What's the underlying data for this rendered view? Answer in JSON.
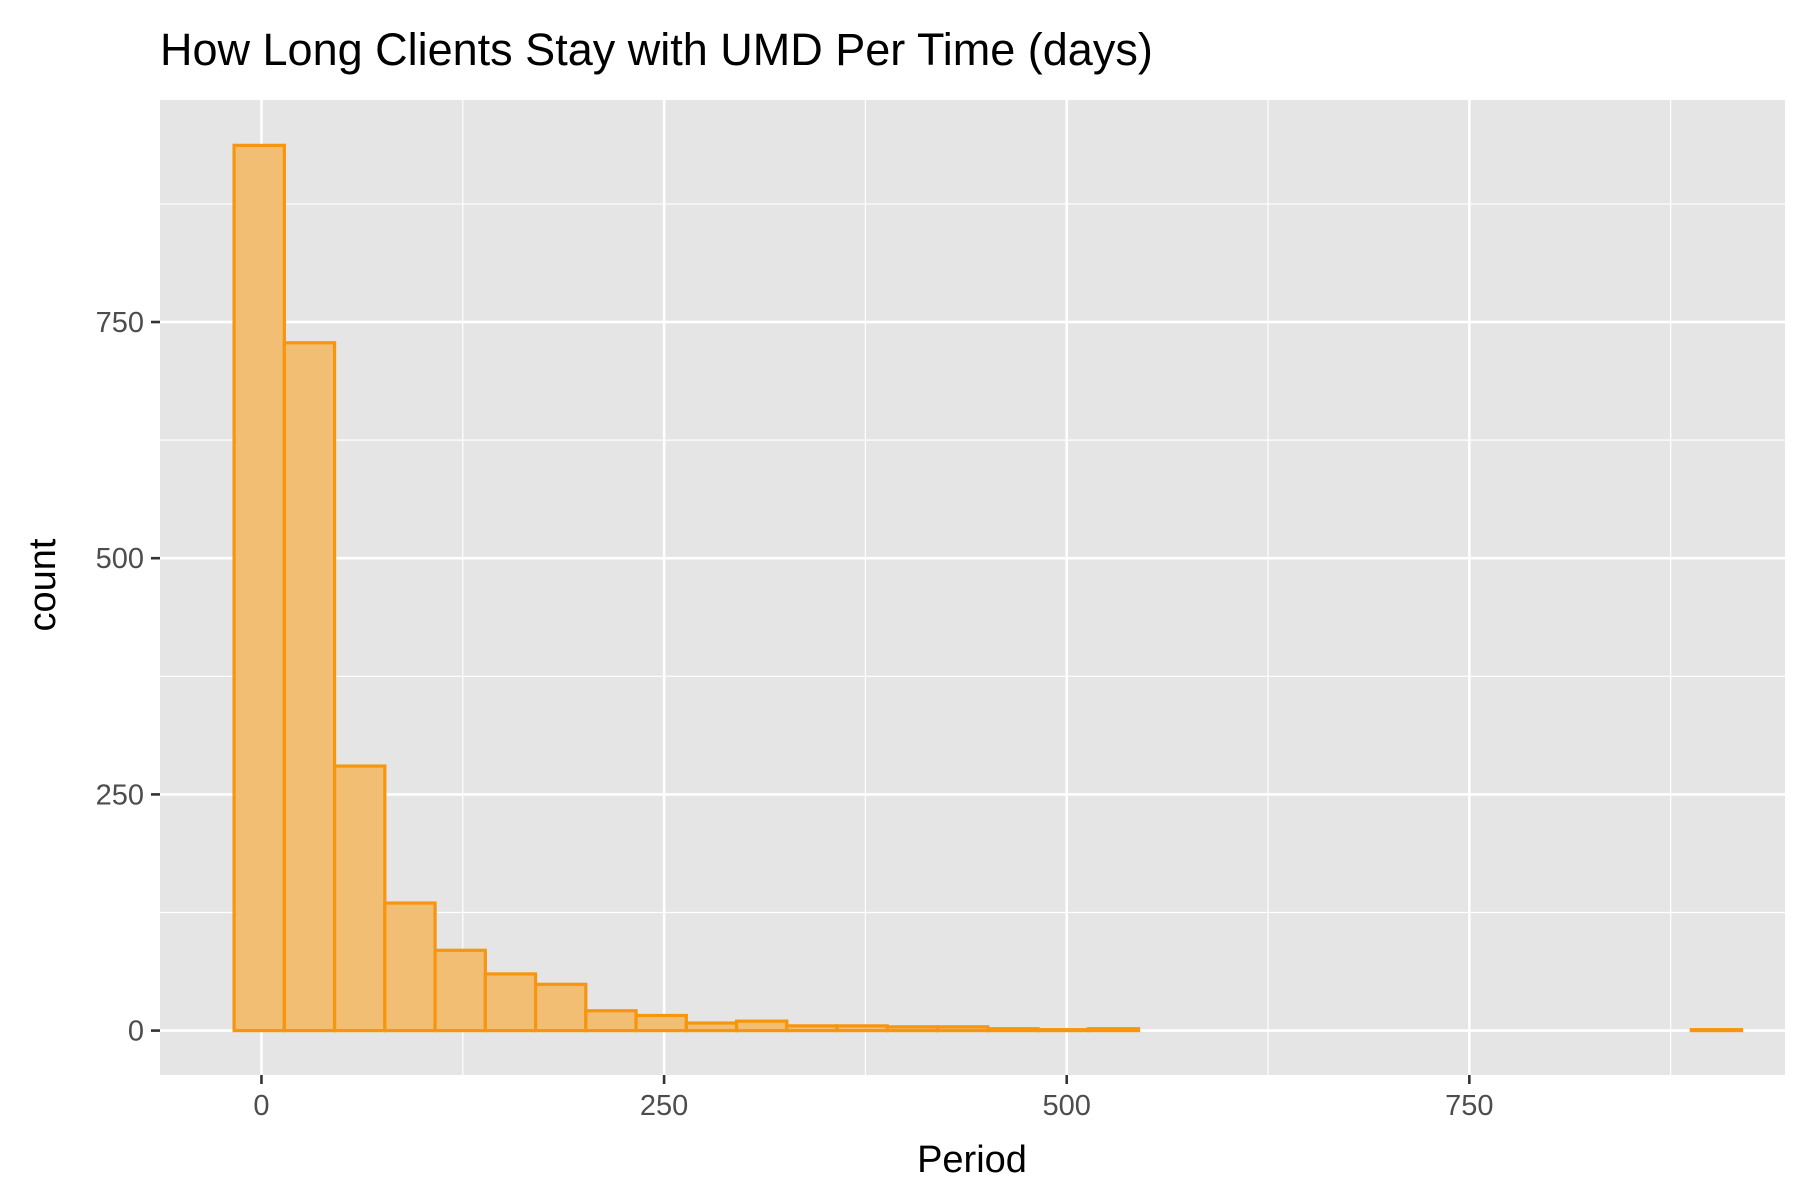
{
  "chart_data": {
    "type": "bar",
    "title": "How Long Clients Stay with UMD Per Time (days)",
    "xlabel": "Period",
    "ylabel": "count",
    "xlim": [
      -63,
      946
    ],
    "ylim": [
      -47,
      985
    ],
    "x_ticks": [
      0,
      250,
      500,
      750
    ],
    "y_ticks": [
      0,
      250,
      500,
      750
    ],
    "x_minor": [
      125,
      375,
      625,
      875
    ],
    "y_minor": [
      125,
      375,
      625,
      875
    ],
    "grid": true,
    "bin_width": 31.2,
    "bins": [
      {
        "x0": -17,
        "x1": 14.2,
        "value": 937
      },
      {
        "x0": 14.2,
        "x1": 45.4,
        "value": 728
      },
      {
        "x0": 45.4,
        "x1": 76.6,
        "value": 280
      },
      {
        "x0": 76.6,
        "x1": 107.8,
        "value": 135
      },
      {
        "x0": 107.8,
        "x1": 139.0,
        "value": 85
      },
      {
        "x0": 139.0,
        "x1": 170.2,
        "value": 60
      },
      {
        "x0": 170.2,
        "x1": 201.4,
        "value": 49
      },
      {
        "x0": 201.4,
        "x1": 232.6,
        "value": 21
      },
      {
        "x0": 232.6,
        "x1": 263.8,
        "value": 16
      },
      {
        "x0": 263.8,
        "x1": 295.0,
        "value": 8
      },
      {
        "x0": 295.0,
        "x1": 326.2,
        "value": 10
      },
      {
        "x0": 326.2,
        "x1": 357.4,
        "value": 5
      },
      {
        "x0": 357.4,
        "x1": 388.6,
        "value": 5
      },
      {
        "x0": 388.6,
        "x1": 419.8,
        "value": 4
      },
      {
        "x0": 419.8,
        "x1": 451.0,
        "value": 4
      },
      {
        "x0": 451.0,
        "x1": 482.2,
        "value": 2
      },
      {
        "x0": 482.2,
        "x1": 513.4,
        "value": 1
      },
      {
        "x0": 513.4,
        "x1": 544.6,
        "value": 2
      },
      {
        "x0": 544.6,
        "x1": 575.8,
        "value": 0
      },
      {
        "x0": 575.8,
        "x1": 607.0,
        "value": 0
      },
      {
        "x0": 607.0,
        "x1": 638.2,
        "value": 0
      },
      {
        "x0": 638.2,
        "x1": 669.4,
        "value": 0
      },
      {
        "x0": 669.4,
        "x1": 700.6,
        "value": 0
      },
      {
        "x0": 700.6,
        "x1": 731.8,
        "value": 0
      },
      {
        "x0": 731.8,
        "x1": 763.0,
        "value": 0
      },
      {
        "x0": 763.0,
        "x1": 794.2,
        "value": 0
      },
      {
        "x0": 794.2,
        "x1": 825.4,
        "value": 0
      },
      {
        "x0": 825.4,
        "x1": 856.6,
        "value": 0
      },
      {
        "x0": 856.6,
        "x1": 887.8,
        "value": 0
      },
      {
        "x0": 887.8,
        "x1": 919.0,
        "value": 1
      }
    ],
    "colors": {
      "panel": "#e5e5e5",
      "grid": "#ffffff",
      "bar_fill": "#f2be74",
      "bar_stroke": "#f7950e",
      "tick": "#333333"
    }
  }
}
